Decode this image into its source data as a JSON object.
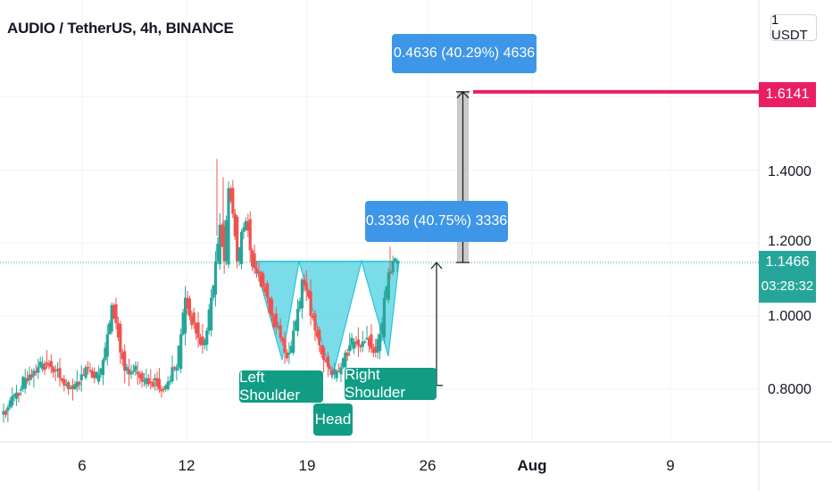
{
  "header": {
    "title": "AUDIO / TetherUS, 4h, BINANCE"
  },
  "price_axis": {
    "unit": "1 USDT",
    "ticks": [
      {
        "value": 1.4,
        "label": "1.4000"
      },
      {
        "value": 1.2,
        "label": "1.2000"
      },
      {
        "value": 1.0,
        "label": "1.0000"
      },
      {
        "value": 0.8,
        "label": "0.8000"
      }
    ],
    "target_label": "1.6141",
    "current_price_label": "1.1466",
    "countdown": "03:28:32"
  },
  "time_axis": {
    "ticks": [
      {
        "label": "6",
        "bold": false
      },
      {
        "label": "12",
        "bold": false
      },
      {
        "label": "19",
        "bold": false
      },
      {
        "label": "26",
        "bold": false
      },
      {
        "label": "Aug",
        "bold": true
      },
      {
        "label": "9",
        "bold": false
      }
    ]
  },
  "annotations": {
    "measure_top": "0.4636 (40.29%) 4636",
    "measure_lower": "0.3336 (40.75%) 3336",
    "left_shoulder": "Left Shoulder",
    "head": "Head",
    "right_shoulder": "Right Shoulder"
  },
  "colors": {
    "up": "#26a69a",
    "down": "#ef5350",
    "pattern_fill": "#4dd0e1",
    "target_line": "#e91e63",
    "callout": "#3d96e8",
    "pattern_label": "#119c85"
  },
  "chart_data": {
    "type": "candlestick",
    "symbol": "AUDIO / TetherUS",
    "interval": "4h",
    "exchange": "BINANCE",
    "ylim": [
      0.64,
      1.85
    ],
    "current_price": 1.1466,
    "target_price": 1.6141,
    "neckline": 1.15,
    "head_low": 0.83,
    "close_path": [
      [
        0.74,
        0.75,
        0.78,
        0.79,
        0.8,
        0.83,
        0.84,
        0.85,
        0.86,
        0.87,
        0.87,
        0.86,
        0.85,
        0.83,
        0.81,
        0.8,
        0.8,
        0.82,
        0.84,
        0.86,
        0.85,
        0.83
      ],
      [
        0.84,
        0.88,
        0.95,
        1.03,
        0.98,
        0.9,
        0.85,
        0.84,
        0.85,
        0.84,
        0.82,
        0.83,
        0.82,
        0.83,
        0.8,
        0.8,
        0.82,
        0.86
      ],
      [
        0.86,
        0.95,
        1.05,
        1.0,
        0.98,
        0.94,
        0.92,
        0.96,
        1.05,
        1.15,
        1.25,
        1.15,
        1.35,
        1.28,
        1.15,
        1.23,
        1.26,
        1.18
      ],
      [
        1.13,
        1.12,
        1.08,
        1.05,
        1.0,
        0.97,
        0.94,
        0.9,
        0.9,
        0.96,
        1.02,
        1.1,
        1.07,
        1.0,
        0.96,
        0.92,
        0.88,
        0.86,
        0.84,
        0.85,
        0.86,
        0.9,
        0.92,
        0.93,
        0.92,
        0.93,
        0.94,
        0.91,
        0.9,
        0.95,
        1.05,
        1.12,
        1.15,
        1.15
      ]
    ]
  }
}
